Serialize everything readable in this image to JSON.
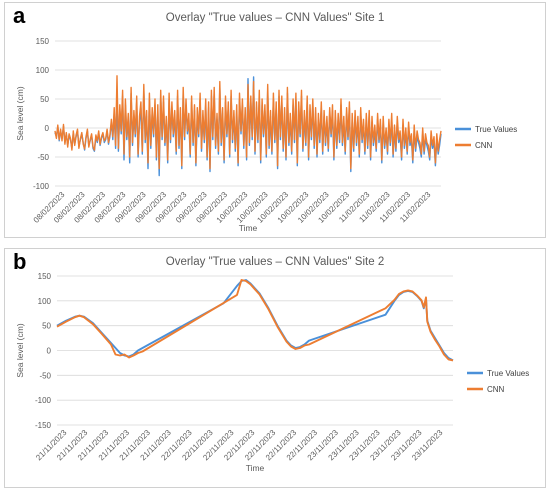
{
  "colors": {
    "true_values": "#4a90d9",
    "cnn": "#ed7d31"
  },
  "chart_data": [
    {
      "panel_letter": "a",
      "type": "line",
      "title": "Overlay \"True values – CNN Values\" Site 1",
      "xlabel": "Time",
      "ylabel": "Sea level (cm)",
      "ylim": [
        -100,
        150
      ],
      "yticks": [
        -100,
        -50,
        0,
        50,
        100,
        150
      ],
      "grid": true,
      "legend_position": "right",
      "x_tick_labels": [
        "08/02/2023",
        "08/02/2023",
        "08/02/2023",
        "08/02/2023",
        "09/02/2023",
        "09/02/2023",
        "09/02/2023",
        "09/02/2023",
        "09/02/2023",
        "10/02/2023",
        "10/02/2023",
        "10/02/2023",
        "10/02/2023",
        "10/02/2023",
        "10/02/2023",
        "11/02/2023",
        "11/02/2023",
        "11/02/2023",
        "11/02/2023"
      ],
      "series": [
        {
          "name": "True Values",
          "color": "#4a90d9",
          "values": [
            -8,
            -15,
            2,
            -22,
            -5,
            -18,
            3,
            -25,
            -10,
            -30,
            -12,
            -20,
            -35,
            -8,
            -28,
            -15,
            -5,
            -32,
            -20,
            -10,
            -25,
            -38,
            -18,
            -5,
            -30,
            -22,
            -12,
            -35,
            -40,
            -15,
            -25,
            -8,
            -30,
            -18,
            -10,
            -25,
            -20,
            -5,
            -28,
            -15,
            10,
            -20,
            25,
            -35,
            45,
            -40,
            30,
            -10,
            55,
            -55,
            40,
            -20,
            15,
            -60,
            60,
            -30,
            20,
            -15,
            45,
            -50,
            10,
            35,
            -45,
            65,
            -25,
            20,
            -70,
            50,
            -35,
            25,
            -15,
            40,
            -55,
            30,
            -82,
            55,
            -20,
            45,
            -30,
            10,
            -60,
            50,
            -25,
            35,
            -15,
            20,
            -45,
            55,
            -35,
            25,
            -70,
            60,
            -20,
            40,
            -10,
            15,
            -50,
            45,
            -30,
            30,
            -65,
            25,
            -15,
            50,
            -40,
            20,
            -25,
            40,
            -55,
            35,
            -75,
            55,
            -20,
            60,
            -35,
            15,
            -45,
            70,
            -30,
            25,
            -60,
            45,
            -15,
            35,
            -50,
            55,
            -25,
            20,
            -40,
            30,
            -65,
            50,
            -10,
            40,
            -35,
            25,
            -55,
            85,
            -30,
            45,
            -20,
            88,
            -45,
            35,
            -25,
            55,
            -60,
            40,
            -15,
            30,
            -50,
            65,
            -35,
            20,
            -45,
            50,
            -25,
            35,
            -70,
            55,
            -20,
            45,
            -40,
            25,
            -55,
            60,
            -30,
            15,
            -45,
            40,
            -25,
            50,
            -65,
            35,
            -15,
            55,
            -40,
            20,
            -30,
            45,
            -55,
            30,
            -20,
            40,
            -35,
            25,
            -50,
            15,
            -25,
            35,
            -45,
            20,
            -30,
            10,
            -40,
            25,
            -15,
            30,
            -55,
            20,
            -35,
            15,
            -25,
            40,
            -30,
            10,
            -45,
            25,
            -20,
            35,
            -75,
            15,
            -40,
            20,
            -30,
            10,
            -50,
            25,
            -25,
            5,
            -45,
            15,
            -35,
            20,
            -55,
            10,
            -30,
            -5,
            -40,
            15,
            -25,
            5,
            -60,
            10,
            -35,
            -10,
            -45,
            5,
            -30,
            15,
            -50,
            -5,
            -40,
            10,
            -25,
            -15,
            -55,
            5,
            -35,
            -10,
            -45,
            0,
            -30,
            -20,
            -60,
            -5,
            -40,
            -15,
            -25,
            -35,
            -50,
            -10,
            -45,
            -20,
            -30,
            -40,
            -55,
            -15,
            -35,
            -25,
            -65,
            -20,
            -45,
            -30,
            -10
          ]
        },
        {
          "name": "CNN",
          "color": "#ed7d31",
          "values": [
            -5,
            -18,
            5,
            -20,
            -2,
            -22,
            6,
            -28,
            -8,
            -33,
            -10,
            -18,
            -38,
            -5,
            -30,
            -12,
            -2,
            -35,
            -18,
            -8,
            -28,
            -36,
            -15,
            -2,
            -33,
            -20,
            -10,
            -32,
            -38,
            -12,
            -22,
            -5,
            -28,
            -15,
            -8,
            -22,
            -18,
            -2,
            -25,
            -12,
            15,
            -15,
            35,
            -30,
            90,
            -35,
            40,
            -5,
            65,
            -45,
            50,
            -15,
            25,
            -50,
            70,
            -25,
            30,
            -10,
            55,
            -45,
            20,
            45,
            -40,
            75,
            -20,
            30,
            -60,
            60,
            -30,
            35,
            -10,
            50,
            -50,
            40,
            -70,
            65,
            -15,
            55,
            -25,
            20,
            -55,
            60,
            -20,
            45,
            -10,
            30,
            -40,
            65,
            -30,
            35,
            -65,
            70,
            -15,
            50,
            -5,
            25,
            -45,
            55,
            -25,
            40,
            -60,
            35,
            -10,
            60,
            -35,
            30,
            -20,
            50,
            -50,
            45,
            -70,
            65,
            -15,
            70,
            -30,
            25,
            -40,
            80,
            -25,
            35,
            -55,
            55,
            -10,
            45,
            -45,
            65,
            -20,
            30,
            -35,
            40,
            -60,
            60,
            -5,
            50,
            -30,
            35,
            -50,
            75,
            -25,
            55,
            -15,
            80,
            -40,
            45,
            -20,
            65,
            -55,
            50,
            -10,
            40,
            -45,
            75,
            -30,
            30,
            -40,
            60,
            -20,
            45,
            -65,
            65,
            -15,
            55,
            -35,
            35,
            -50,
            70,
            -25,
            25,
            -40,
            50,
            -20,
            60,
            -60,
            45,
            -10,
            65,
            -35,
            30,
            -25,
            55,
            -50,
            40,
            -15,
            50,
            -30,
            35,
            -45,
            25,
            -20,
            45,
            -40,
            30,
            -25,
            20,
            -35,
            35,
            -10,
            40,
            -50,
            30,
            -30,
            25,
            -20,
            50,
            -25,
            20,
            -40,
            35,
            -15,
            45,
            -70,
            25,
            -35,
            30,
            -25,
            20,
            -45,
            35,
            -20,
            15,
            -40,
            25,
            -30,
            30,
            -50,
            20,
            -25,
            5,
            -35,
            25,
            -20,
            15,
            -55,
            20,
            -30,
            0,
            -40,
            15,
            -25,
            25,
            -45,
            5,
            -35,
            20,
            -20,
            -5,
            -50,
            15,
            -30,
            0,
            -40,
            10,
            -25,
            -10,
            -55,
            5,
            -35,
            -5,
            -20,
            -25,
            -45,
            0,
            -40,
            -10,
            -25,
            -30,
            -50,
            -5,
            -30,
            -15,
            -60,
            -10,
            -40,
            -20,
            -5
          ]
        }
      ]
    },
    {
      "panel_letter": "b",
      "type": "line",
      "title": "Overlay \"True values – CNN Values\" Site 2",
      "xlabel": "Time",
      "ylabel": "Sea level (cm)",
      "ylim": [
        -150,
        150
      ],
      "yticks": [
        -150,
        -100,
        -50,
        0,
        50,
        100,
        150
      ],
      "grid": true,
      "legend_position": "right",
      "x_tick_labels": [
        "21/11/2023",
        "21/11/2023",
        "21/11/2023",
        "21/11/2023",
        "21/11/2023",
        "21/11/2023",
        "22/11/2023",
        "22/11/2023",
        "22/11/2023",
        "22/11/2023",
        "22/11/2023",
        "22/11/2023",
        "22/11/2023",
        "23/11/2023",
        "23/11/2023",
        "23/11/2023",
        "23/11/2023",
        "23/11/2023",
        "23/11/2023"
      ],
      "series": [
        {
          "name": "True Values",
          "color": "#4a90d9",
          "points": [
            [
              0,
              50
            ],
            [
              2,
              60
            ],
            [
              4,
              68
            ],
            [
              5,
              70
            ],
            [
              6,
              68
            ],
            [
              8,
              55
            ],
            [
              10,
              35
            ],
            [
              12,
              15
            ],
            [
              14,
              -5
            ],
            [
              15,
              -10
            ],
            [
              16,
              -12
            ],
            [
              17,
              -8
            ],
            [
              18,
              0
            ],
            [
              19,
              5
            ],
            [
              37,
              95
            ],
            [
              40,
              130
            ],
            [
              41,
              140
            ],
            [
              42,
              142
            ],
            [
              43,
              135
            ],
            [
              45,
              115
            ],
            [
              47,
              85
            ],
            [
              49,
              50
            ],
            [
              51,
              20
            ],
            [
              52,
              10
            ],
            [
              53,
              5
            ],
            [
              54,
              7
            ],
            [
              55,
              12
            ],
            [
              56,
              20
            ],
            [
              73,
              72
            ],
            [
              75,
              100
            ],
            [
              76,
              112
            ],
            [
              77,
              118
            ],
            [
              78,
              120
            ],
            [
              79,
              118
            ],
            [
              80,
              110
            ],
            [
              81,
              100
            ],
            [
              81.5,
              85
            ],
            [
              82,
              105
            ],
            [
              82.3,
              60
            ],
            [
              83,
              40
            ],
            [
              84,
              25
            ],
            [
              85,
              10
            ],
            [
              86,
              -5
            ],
            [
              87,
              -15
            ],
            [
              88,
              -20
            ]
          ]
        },
        {
          "name": "CNN",
          "color": "#ed7d31",
          "points": [
            [
              0,
              48
            ],
            [
              2,
              58
            ],
            [
              4,
              67
            ],
            [
              5,
              70
            ],
            [
              6,
              67
            ],
            [
              8,
              53
            ],
            [
              10,
              33
            ],
            [
              12,
              12
            ],
            [
              13,
              -8
            ],
            [
              14,
              -10
            ],
            [
              15,
              -8
            ],
            [
              16,
              -14
            ],
            [
              17,
              -10
            ],
            [
              18,
              -5
            ],
            [
              19,
              -2
            ],
            [
              40,
              112
            ],
            [
              41,
              142
            ],
            [
              42,
              140
            ],
            [
              43,
              133
            ],
            [
              45,
              113
            ],
            [
              47,
              83
            ],
            [
              49,
              48
            ],
            [
              51,
              18
            ],
            [
              52,
              8
            ],
            [
              53,
              3
            ],
            [
              54,
              5
            ],
            [
              55,
              10
            ],
            [
              56,
              12
            ],
            [
              73,
              85
            ],
            [
              75,
              102
            ],
            [
              76,
              114
            ],
            [
              77,
              119
            ],
            [
              78,
              121
            ],
            [
              79,
              119
            ],
            [
              80,
              111
            ],
            [
              81,
              101
            ],
            [
              81.5,
              87
            ],
            [
              82,
              107
            ],
            [
              82.3,
              58
            ],
            [
              83,
              38
            ],
            [
              84,
              22
            ],
            [
              85,
              8
            ],
            [
              86,
              -8
            ],
            [
              87,
              -18
            ],
            [
              88,
              -20
            ]
          ]
        }
      ]
    }
  ]
}
